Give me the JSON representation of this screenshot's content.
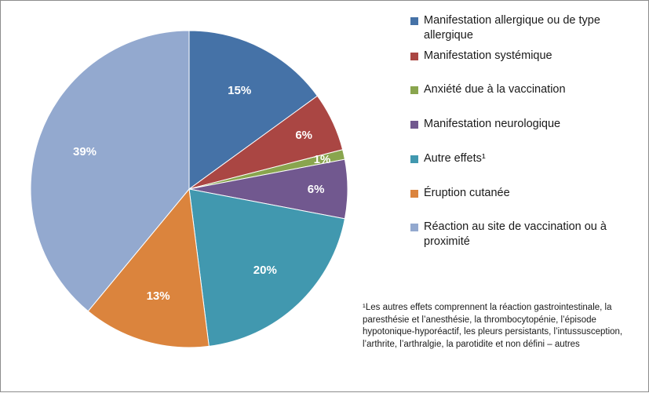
{
  "chart_data": {
    "type": "pie",
    "start_angle_deg": 0,
    "direction": "clockwise",
    "slices": [
      {
        "label": "Manifestation allergique ou de type allergique",
        "value": 15,
        "value_label": "15%",
        "color": "#4572A7"
      },
      {
        "label": "Manifestation systémique",
        "value": 6,
        "value_label": "6%",
        "color": "#AA4643"
      },
      {
        "label": "Anxiété due à la vaccination",
        "value": 1,
        "value_label": "1%",
        "color": "#89A54E"
      },
      {
        "label": "Manifestation neurologique",
        "value": 6,
        "value_label": "6%",
        "color": "#71588F"
      },
      {
        "label": "Autre effets¹",
        "value": 20,
        "value_label": "20%",
        "color": "#4198AF"
      },
      {
        "label": "Éruption cutanée",
        "value": 13,
        "value_label": "13%",
        "color": "#DB843D"
      },
      {
        "label": "Réaction au site de vaccination ou à proximité",
        "value": 39,
        "value_label": "39%",
        "color": "#93A9CF"
      }
    ],
    "legend": "right",
    "footnote": "¹Les autres effets comprennent la réaction gastrointestinale, la paresthésie et l’anesthésie, la thrombocytopénie, l’épisode hypotonique-hyporéactif, les pleurs persistants, l’intussusception, l’arthrite, l’arthralgie, la parotidite  et non défini – autres"
  }
}
